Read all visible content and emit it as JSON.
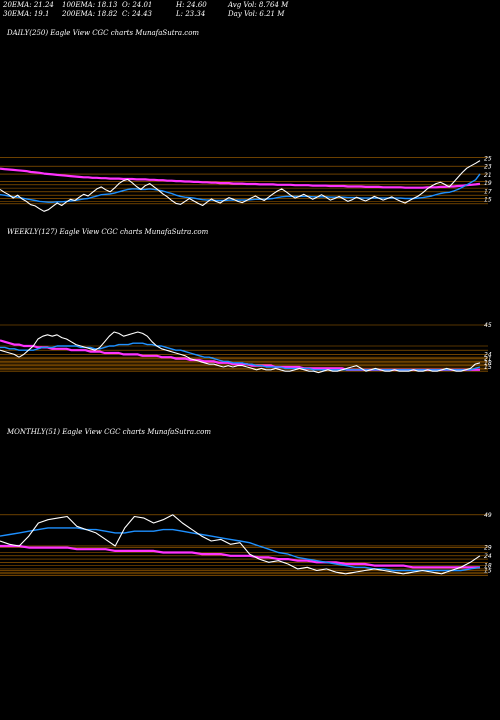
{
  "header": {
    "ema20": "20EMA: 21.24",
    "ema100": "100EMA: 18.13",
    "open": "O: 24.01",
    "high": "H: 24.60",
    "avgvol": "Avg Vol: 8.764  M",
    "ema30": "30EMA: 19.1",
    "ema200": "200EMA: 18.82",
    "close": "C: 24.43",
    "low": "L: 23.34",
    "dayvol": "Day Vol: 6.21 M"
  },
  "panels": [
    {
      "title": "DAILY(250) Eagle   View  CGC charts MunafaSutra.com",
      "ticks": [
        "25",
        "23",
        "21",
        "19",
        "17",
        "15"
      ]
    },
    {
      "title": "WEEKLY(127) Eagle   View  CGC charts MunafaSutra.com",
      "ticks": [
        "45",
        "24",
        "21",
        "18",
        "15"
      ]
    },
    {
      "title": "MONTHLY(51) Eagle   View  CGC charts MunafaSutra.com",
      "ticks": [
        "49",
        "29",
        "24",
        "18",
        "15"
      ]
    }
  ],
  "colors": {
    "price": "#ffffff",
    "ema_fast": "#1e90ff",
    "ema_slow": "#ff33ff",
    "hlines": "#cc7a00",
    "bg": "#000000"
  },
  "chart_data": [
    {
      "type": "line",
      "title": "DAILY(250) Eagle   View  CGC charts MunafaSutra.com",
      "ylim": [
        13,
        27
      ],
      "yticks": [
        25,
        23,
        21,
        19,
        17,
        15
      ],
      "levels": [
        25.2,
        23.1,
        21.2,
        19.4,
        18.6,
        17.8,
        16.9,
        16.1,
        15.3,
        14.6,
        14.0
      ],
      "series": [
        {
          "values": [
            17.5,
            16.8,
            16.2,
            15.4,
            16.1,
            15.2,
            14.6,
            13.8,
            13.5,
            12.8,
            12.2,
            12.6,
            13.4,
            14.2,
            13.6,
            14.4,
            15.1,
            14.8,
            15.6,
            16.3,
            15.9,
            16.8,
            17.6,
            18.1,
            17.4,
            16.9,
            17.8,
            18.9,
            19.6,
            19.9,
            19.1,
            18.2,
            17.5,
            18.4,
            18.9,
            18.1,
            17.3,
            16.4,
            15.7,
            14.8,
            14.1,
            13.9,
            14.6,
            15.3,
            14.7,
            14.1,
            13.6,
            14.4,
            15.2,
            14.6,
            14.2,
            14.9,
            15.5,
            15.1,
            14.6,
            14.3,
            14.8,
            15.4,
            15.9,
            15.3,
            14.8,
            15.6,
            16.4,
            17.1,
            17.6,
            16.9,
            16.1,
            15.4,
            15.8,
            16.3,
            15.7,
            15.1,
            15.6,
            16.2,
            15.6,
            14.9,
            15.3,
            15.8,
            15.2,
            14.6,
            15.0,
            15.6,
            15.1,
            14.7,
            15.2,
            15.8,
            15.4,
            14.9,
            15.3,
            15.7,
            15.1,
            14.6,
            14.2,
            14.8,
            15.4,
            15.9,
            16.7,
            17.6,
            18.3,
            18.9,
            19.2,
            18.7,
            18.1,
            19.2,
            20.4,
            21.6,
            22.6,
            23.2,
            23.8,
            24.43
          ]
        },
        {
          "values": [
            16.2,
            16.1,
            15.9,
            15.7,
            15.6,
            15.4,
            15.2,
            15.0,
            14.8,
            14.6,
            14.5,
            14.4,
            14.4,
            14.5,
            14.5,
            14.6,
            14.7,
            14.8,
            15.0,
            15.2,
            15.3,
            15.6,
            15.9,
            16.2,
            16.3,
            16.4,
            16.6,
            16.9,
            17.2,
            17.5,
            17.6,
            17.6,
            17.5,
            17.5,
            17.6,
            17.5,
            17.3,
            17.1,
            16.8,
            16.5,
            16.1,
            15.8,
            15.6,
            15.5,
            15.4,
            15.2,
            15.0,
            14.9,
            14.9,
            14.8,
            14.8,
            14.8,
            14.9,
            14.9,
            14.9,
            14.9,
            14.9,
            15.0,
            15.1,
            15.1,
            15.1,
            15.2,
            15.3,
            15.5,
            15.7,
            15.8,
            15.8,
            15.8,
            15.8,
            15.8,
            15.8,
            15.7,
            15.7,
            15.7,
            15.7,
            15.6,
            15.6,
            15.6,
            15.6,
            15.5,
            15.5,
            15.5,
            15.4,
            15.4,
            15.4,
            15.4,
            15.4,
            15.4,
            15.4,
            15.4,
            15.4,
            15.4,
            15.3,
            15.3,
            15.3,
            15.4,
            15.5,
            15.7,
            15.9,
            16.2,
            16.5,
            16.7,
            16.8,
            17.1,
            17.5,
            18.0,
            18.6,
            19.2,
            19.8,
            21.24
          ]
        },
        {
          "values": [
            22.5,
            22.4,
            22.3,
            22.2,
            22.1,
            22.0,
            21.9,
            21.7,
            21.6,
            21.5,
            21.3,
            21.2,
            21.1,
            21.0,
            20.9,
            20.8,
            20.7,
            20.6,
            20.5,
            20.4,
            20.4,
            20.3,
            20.3,
            20.2,
            20.2,
            20.1,
            20.1,
            20.1,
            20.0,
            20.0,
            20.0,
            19.9,
            19.9,
            19.9,
            19.8,
            19.8,
            19.7,
            19.7,
            19.6,
            19.6,
            19.5,
            19.5,
            19.4,
            19.4,
            19.3,
            19.3,
            19.2,
            19.2,
            19.1,
            19.1,
            19.0,
            19.0,
            19.0,
            18.9,
            18.9,
            18.9,
            18.8,
            18.8,
            18.8,
            18.7,
            18.7,
            18.7,
            18.7,
            18.6,
            18.6,
            18.6,
            18.6,
            18.5,
            18.5,
            18.5,
            18.5,
            18.4,
            18.4,
            18.4,
            18.4,
            18.3,
            18.3,
            18.3,
            18.3,
            18.2,
            18.2,
            18.2,
            18.2,
            18.1,
            18.1,
            18.1,
            18.1,
            18.0,
            18.0,
            18.0,
            18.0,
            18.0,
            17.9,
            17.9,
            17.9,
            17.9,
            17.9,
            18.0,
            18.0,
            18.0,
            18.1,
            18.1,
            18.2,
            18.2,
            18.3,
            18.4,
            18.5,
            18.6,
            18.7,
            18.82
          ]
        }
      ]
    },
    {
      "type": "line",
      "title": "WEEKLY(127) Eagle   View  CGC charts MunafaSutra.com",
      "ylim": [
        10,
        50
      ],
      "yticks": [
        45,
        24,
        21,
        18,
        15
      ],
      "levels": [
        45,
        30,
        27,
        24,
        22,
        21,
        20,
        19,
        18,
        17,
        16,
        15,
        14,
        13,
        12
      ],
      "series": [
        {
          "values": [
            27,
            26,
            25,
            24,
            22,
            24,
            27,
            30,
            35,
            37,
            38,
            37,
            38,
            36,
            35,
            33,
            31,
            30,
            29,
            28,
            27,
            29,
            33,
            37,
            40,
            39,
            37,
            38,
            39,
            40,
            39,
            37,
            33,
            30,
            28,
            27,
            26,
            25,
            24,
            23,
            21,
            20,
            19,
            18,
            17,
            17,
            16,
            15,
            16,
            15,
            16,
            16,
            15,
            14,
            13,
            14,
            13,
            13,
            14,
            13,
            12,
            12,
            13,
            14,
            13,
            12,
            12,
            11,
            12,
            13,
            12,
            12,
            13,
            14,
            15,
            16,
            14,
            12,
            13,
            14,
            13,
            12,
            12,
            13,
            12,
            12,
            12,
            13,
            12,
            12,
            13,
            12,
            12,
            13,
            14,
            13,
            12,
            12,
            13,
            14,
            17,
            18
          ]
        },
        {
          "values": [
            29,
            29,
            28,
            28,
            27,
            27,
            27,
            27,
            28,
            29,
            29,
            29,
            30,
            30,
            30,
            30,
            30,
            29,
            29,
            29,
            28,
            28,
            29,
            30,
            30,
            31,
            31,
            31,
            32,
            32,
            32,
            31,
            31,
            30,
            30,
            29,
            28,
            27,
            27,
            26,
            25,
            24,
            23,
            22,
            22,
            21,
            20,
            19,
            19,
            18,
            18,
            18,
            17,
            17,
            16,
            16,
            15,
            15,
            15,
            15,
            14,
            14,
            14,
            14,
            14,
            14,
            13,
            13,
            13,
            13,
            13,
            13,
            13,
            13,
            13,
            13,
            13,
            13,
            13,
            13,
            13,
            13,
            13,
            13,
            13,
            13,
            13,
            13,
            13,
            13,
            13,
            13,
            13,
            13,
            13,
            13,
            13,
            13,
            13,
            13,
            14,
            15
          ]
        },
        {
          "values": [
            34,
            33,
            32,
            31,
            31,
            30,
            30,
            30,
            29,
            29,
            29,
            28,
            28,
            28,
            28,
            27,
            27,
            27,
            27,
            26,
            26,
            26,
            25,
            25,
            25,
            25,
            24,
            24,
            24,
            24,
            23,
            23,
            23,
            23,
            22,
            22,
            22,
            21,
            21,
            21,
            20,
            20,
            20,
            19,
            19,
            19,
            18,
            18,
            18,
            17,
            17,
            17,
            17,
            16,
            16,
            16,
            16,
            16,
            15,
            15,
            15,
            15,
            15,
            15,
            14,
            14,
            14,
            14,
            14,
            14,
            14,
            14,
            14,
            13,
            13,
            13,
            13,
            13,
            13,
            13,
            13,
            13,
            13,
            13,
            13,
            13,
            13,
            13,
            13,
            13,
            13,
            13,
            13,
            13,
            13,
            13,
            13,
            13,
            13,
            13,
            13,
            13
          ]
        }
      ]
    },
    {
      "type": "line",
      "title": "MONTHLY(51) Eagle   View  CGC charts MunafaSutra.com",
      "ylim": [
        8,
        55
      ],
      "yticks": [
        49,
        29,
        24,
        18,
        15
      ],
      "levels": [
        49,
        30,
        29,
        26,
        24,
        22,
        20,
        18,
        16,
        15,
        14,
        13,
        12
      ],
      "series": [
        {
          "values": [
            33,
            31,
            30,
            36,
            44,
            46,
            47,
            48,
            42,
            40,
            38,
            34,
            30,
            41,
            48,
            47,
            44,
            46,
            49,
            44,
            40,
            36,
            33,
            34,
            31,
            32,
            25,
            22,
            20,
            21,
            19,
            16,
            17,
            15,
            16,
            14,
            13,
            14,
            15,
            16,
            15,
            14,
            13,
            14,
            15,
            14,
            13,
            15,
            17,
            20,
            24
          ]
        },
        {
          "values": [
            36,
            37,
            38,
            39,
            40,
            41,
            41,
            41,
            41,
            40,
            40,
            39,
            38,
            38,
            39,
            39,
            39,
            40,
            40,
            39,
            38,
            37,
            36,
            35,
            34,
            33,
            32,
            30,
            28,
            26,
            25,
            23,
            22,
            21,
            20,
            19,
            18,
            17,
            17,
            16,
            16,
            15,
            15,
            15,
            15,
            15,
            15,
            15,
            15,
            16,
            17
          ]
        },
        {
          "values": [
            30,
            30,
            30,
            29,
            29,
            29,
            29,
            29,
            28,
            28,
            28,
            28,
            27,
            27,
            27,
            27,
            27,
            26,
            26,
            26,
            26,
            25,
            25,
            25,
            24,
            24,
            24,
            23,
            23,
            22,
            22,
            21,
            21,
            20,
            20,
            20,
            19,
            19,
            19,
            18,
            18,
            18,
            18,
            17,
            17,
            17,
            17,
            17,
            17,
            17,
            17
          ]
        }
      ]
    }
  ]
}
